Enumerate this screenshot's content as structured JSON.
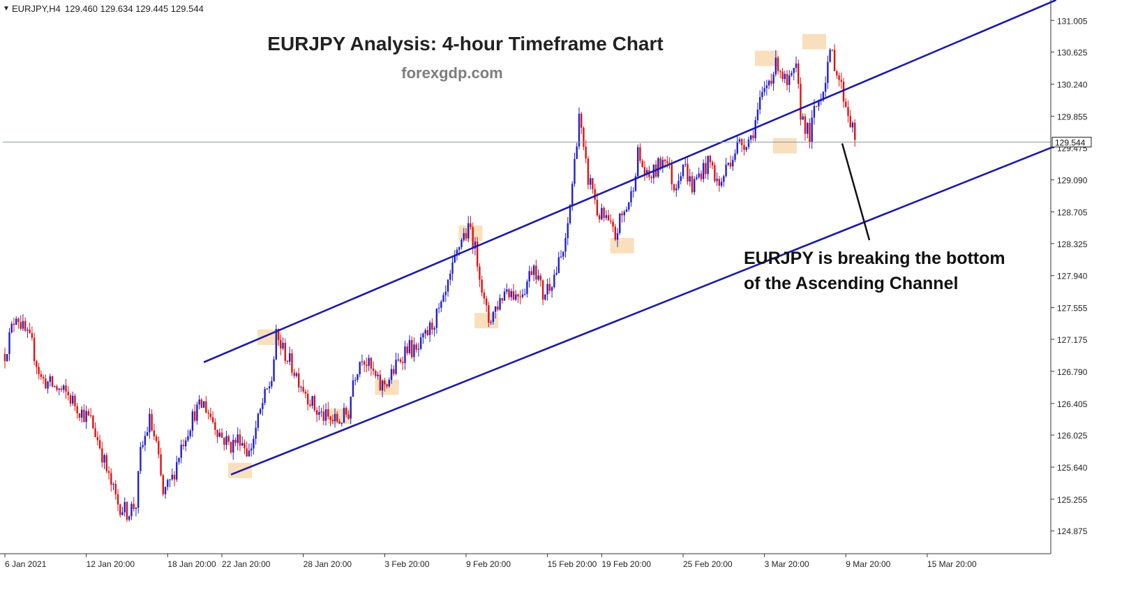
{
  "header": {
    "symbol": "EURJPY,H4",
    "ohlc": "129.460 129.634 129.445 129.544"
  },
  "title": "EURJPY Analysis: 4-hour Timeframe Chart",
  "watermark": "forexgdp.com",
  "annotation": {
    "line1": "EURJPY is breaking the bottom",
    "line2": "of the Ascending Channel"
  },
  "current_price_label": "129.544",
  "colors": {
    "bull": "#1f1fcf",
    "bear": "#e01010",
    "channel": "#1a1aa8",
    "highlight": "#f8d9b0",
    "axis": "#333333",
    "price_line": "#8a9aa0"
  },
  "chart_data": {
    "type": "candlestick",
    "symbol": "EURJPY",
    "timeframe": "H4",
    "ylim": [
      124.6,
      131.2
    ],
    "y_ticks": [
      "131.005",
      "130.625",
      "130.240",
      "129.855",
      "129.475",
      "129.090",
      "128.705",
      "128.325",
      "127.940",
      "127.555",
      "127.175",
      "126.790",
      "126.405",
      "126.025",
      "125.640",
      "125.255",
      "124.875"
    ],
    "x_ticks": [
      "6 Jan 2021",
      "12 Jan 20:00",
      "18 Jan 20:00",
      "22 Jan 20:00",
      "28 Jan 20:00",
      "3 Feb 20:00",
      "9 Feb 20:00",
      "15 Feb 20:00",
      "19 Feb 20:00",
      "25 Feb 20:00",
      "3 Mar 20:00",
      "9 Mar 20:00",
      "15 Mar 20:00"
    ],
    "x_tick_index": [
      0,
      36,
      72,
      96,
      132,
      168,
      204,
      240,
      264,
      300,
      336,
      372,
      408
    ],
    "current_price": 129.544,
    "price_path": [
      [
        0,
        127.0
      ],
      [
        5,
        127.5
      ],
      [
        8,
        127.3
      ],
      [
        12,
        127.1
      ],
      [
        16,
        126.7
      ],
      [
        22,
        126.6
      ],
      [
        28,
        126.5
      ],
      [
        34,
        126.3
      ],
      [
        38,
        126.2
      ],
      [
        42,
        125.9
      ],
      [
        46,
        125.5
      ],
      [
        50,
        125.2
      ],
      [
        54,
        125.1
      ],
      [
        58,
        125.2
      ],
      [
        60,
        125.8
      ],
      [
        64,
        126.2
      ],
      [
        67,
        125.9
      ],
      [
        70,
        125.3
      ],
      [
        74,
        125.5
      ],
      [
        78,
        125.9
      ],
      [
        84,
        126.3
      ],
      [
        88,
        126.4
      ],
      [
        92,
        126.2
      ],
      [
        96,
        126.0
      ],
      [
        100,
        125.9
      ],
      [
        104,
        126.0
      ],
      [
        108,
        125.8
      ],
      [
        111,
        126.1
      ],
      [
        114,
        126.4
      ],
      [
        118,
        126.7
      ],
      [
        120,
        127.2
      ],
      [
        124,
        127.0
      ],
      [
        128,
        126.8
      ],
      [
        132,
        126.6
      ],
      [
        138,
        126.3
      ],
      [
        144,
        126.2
      ],
      [
        148,
        126.2
      ],
      [
        152,
        126.3
      ],
      [
        154,
        126.7
      ],
      [
        158,
        127.0
      ],
      [
        162,
        126.8
      ],
      [
        166,
        126.6
      ],
      [
        170,
        126.7
      ],
      [
        174,
        126.9
      ],
      [
        178,
        127.1
      ],
      [
        182,
        127.0
      ],
      [
        186,
        127.2
      ],
      [
        190,
        127.4
      ],
      [
        194,
        127.6
      ],
      [
        198,
        128.0
      ],
      [
        202,
        128.4
      ],
      [
        206,
        128.5
      ],
      [
        210,
        128.0
      ],
      [
        212,
        127.6
      ],
      [
        214,
        127.4
      ],
      [
        218,
        127.6
      ],
      [
        222,
        127.8
      ],
      [
        226,
        127.7
      ],
      [
        230,
        127.8
      ],
      [
        234,
        128.1
      ],
      [
        236,
        127.9
      ],
      [
        238,
        127.7
      ],
      [
        240,
        127.8
      ],
      [
        244,
        128.0
      ],
      [
        248,
        128.3
      ],
      [
        250,
        128.8
      ],
      [
        252,
        129.3
      ],
      [
        254,
        129.9
      ],
      [
        256,
        129.4
      ],
      [
        258,
        129.1
      ],
      [
        260,
        129.0
      ],
      [
        262,
        128.7
      ],
      [
        266,
        128.6
      ],
      [
        270,
        128.4
      ],
      [
        272,
        128.6
      ],
      [
        274,
        128.7
      ],
      [
        277,
        128.9
      ],
      [
        280,
        129.4
      ],
      [
        284,
        129.1
      ],
      [
        288,
        129.2
      ],
      [
        292,
        129.4
      ],
      [
        296,
        129.0
      ],
      [
        300,
        129.3
      ],
      [
        304,
        129.0
      ],
      [
        308,
        129.2
      ],
      [
        312,
        129.3
      ],
      [
        316,
        129.0
      ],
      [
        320,
        129.3
      ],
      [
        324,
        129.5
      ],
      [
        330,
        129.6
      ],
      [
        334,
        130.0
      ],
      [
        338,
        130.3
      ],
      [
        342,
        130.5
      ],
      [
        346,
        130.2
      ],
      [
        350,
        130.4
      ],
      [
        352,
        129.9
      ],
      [
        356,
        129.6
      ],
      [
        358,
        129.9
      ],
      [
        362,
        130.2
      ],
      [
        364,
        130.5
      ],
      [
        366,
        130.6
      ],
      [
        370,
        130.2
      ],
      [
        372,
        130.0
      ],
      [
        374,
        129.8
      ],
      [
        376,
        129.6
      ]
    ]
  }
}
